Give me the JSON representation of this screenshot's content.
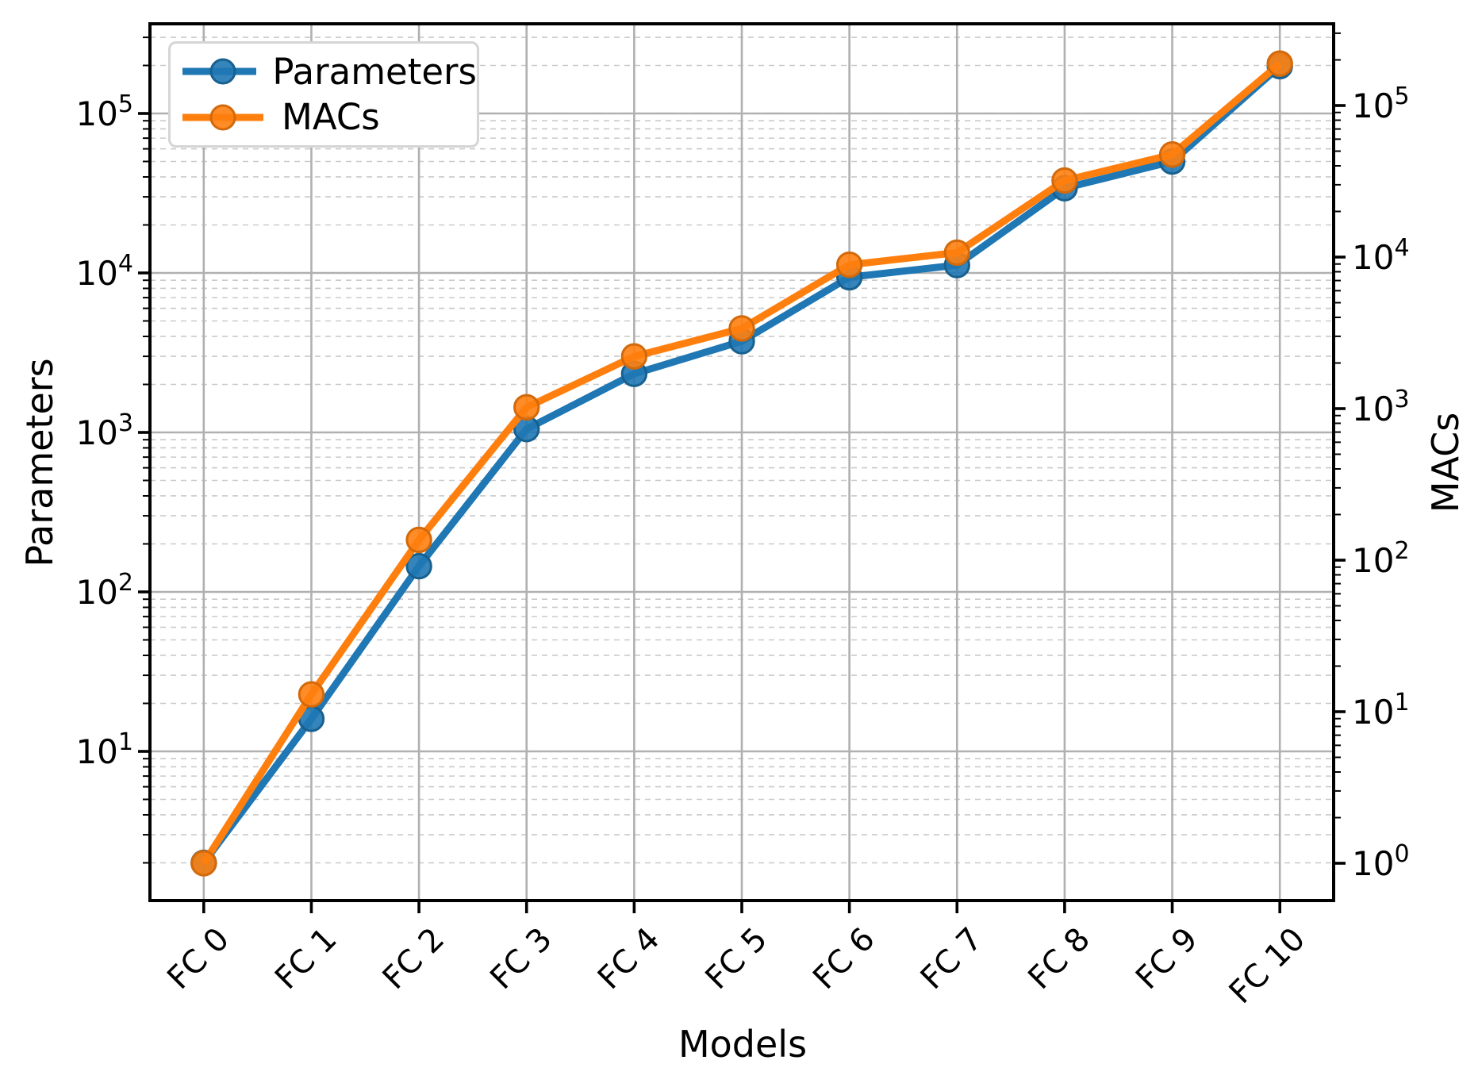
{
  "chart_data": {
    "type": "line",
    "title": "",
    "categories": [
      "FC 0",
      "FC 1",
      "FC 2",
      "FC 3",
      "FC 4",
      "FC 5",
      "FC 6",
      "FC 7",
      "FC 8",
      "FC 9",
      "FC 10"
    ],
    "xlabel": "Models",
    "left_axis": {
      "label": "Parameters",
      "scale": "log",
      "tick_exponents": [
        1,
        2,
        3,
        4,
        5
      ],
      "ylim": [
        1.13,
        365000
      ]
    },
    "right_axis": {
      "label": "MACs",
      "scale": "log",
      "tick_exponents": [
        0,
        1,
        2,
        3,
        4,
        5
      ],
      "ylim": [
        0.55,
        346000
      ]
    },
    "series": [
      {
        "name": "Parameters",
        "axis": "left",
        "color": "#1f77b4",
        "marker_edge": "#17608f",
        "marker": "o",
        "values": [
          2,
          16,
          145,
          1050,
          2330,
          3730,
          9400,
          11200,
          34000,
          50000,
          198000
        ]
      },
      {
        "name": "MACs",
        "axis": "right",
        "color": "#ff7f0e",
        "marker_edge": "#d2690a",
        "marker": "o",
        "values": [
          1,
          13,
          136,
          1020,
          2210,
          3380,
          8900,
          10700,
          32000,
          47500,
          189000
        ]
      }
    ],
    "legend_position": "upper left",
    "grid": {
      "major": "solid",
      "minor": "dashed"
    }
  },
  "colors": {
    "major_grid": "#b0b0b0",
    "minor_grid": "#c9c9c9",
    "spine": "#000000",
    "background": "#ffffff"
  }
}
